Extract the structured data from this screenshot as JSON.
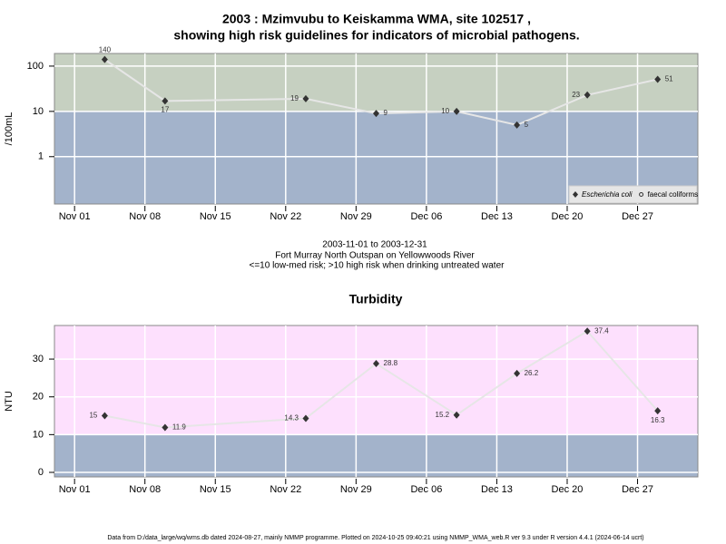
{
  "chart_data": [
    {
      "type": "line",
      "title": "2003 : Mzimvubu to Keiskamma WMA, site 102517 ,",
      "subtitle": "showing high risk guidelines for indicators of microbial pathogens.",
      "notes": [
        "2003-11-01 to 2003-12-31",
        "Fort Murray North Outspan on Yellowwoods River",
        "<=10 low-med risk; >10 high risk when drinking untreated water"
      ],
      "y_label": "/100mL",
      "log_y": true,
      "risk_threshold": 10,
      "band_colors": {
        "above": "#c6d0c1",
        "below": "#a3b3cb"
      },
      "x": [
        "2003-11-04",
        "2003-11-10",
        "2003-11-24",
        "2003-12-01",
        "2003-12-09",
        "2003-12-15",
        "2003-12-22",
        "2003-12-29"
      ],
      "series": [
        {
          "name": "Escherichia coli",
          "color": "#333333",
          "line_color": "#e6e6e6",
          "values": [
            140,
            17,
            19,
            9,
            10,
            5,
            23,
            51
          ]
        },
        {
          "name": "faecal coliforms",
          "color": "#333333",
          "line_color": "#e6e6e6",
          "values": [
            null,
            null,
            null,
            null,
            null,
            null,
            null,
            null
          ]
        }
      ],
      "xlim": [
        "2003-10-30",
        "2004-01-02"
      ],
      "xticks": [
        {
          "value": "2003-11-01",
          "label": "Nov 01"
        },
        {
          "value": "2003-11-08",
          "label": "Nov 08"
        },
        {
          "value": "2003-11-15",
          "label": "Nov 15"
        },
        {
          "value": "2003-11-22",
          "label": "Nov 22"
        },
        {
          "value": "2003-11-29",
          "label": "Nov 29"
        },
        {
          "value": "2003-12-06",
          "label": "Dec 06"
        },
        {
          "value": "2003-12-13",
          "label": "Dec 13"
        },
        {
          "value": "2003-12-20",
          "label": "Dec 20"
        },
        {
          "value": "2003-12-27",
          "label": "Dec 27"
        }
      ],
      "ylim": [
        0.09,
        190
      ],
      "yticks": [
        1,
        10,
        100
      ],
      "grid": true,
      "legend": "bottom-right"
    },
    {
      "type": "line",
      "title": "Turbidity",
      "y_label": "NTU",
      "log_y": false,
      "risk_threshold": 10,
      "band_colors": {
        "above": "#fde0fd",
        "below": "#a3b3cb"
      },
      "x": [
        "2003-11-04",
        "2003-11-10",
        "2003-11-24",
        "2003-12-01",
        "2003-12-09",
        "2003-12-15",
        "2003-12-22",
        "2003-12-29"
      ],
      "series": [
        {
          "name": "Turbidity",
          "color": "#333333",
          "line_color": "#e6e6e6",
          "values": [
            15,
            11.9,
            14.3,
            28.8,
            15.2,
            26.2,
            37.4,
            16.3
          ]
        }
      ],
      "xlim": [
        "2003-10-30",
        "2004-01-02"
      ],
      "xticks": [
        {
          "value": "2003-11-01",
          "label": "Nov 01"
        },
        {
          "value": "2003-11-08",
          "label": "Nov 08"
        },
        {
          "value": "2003-11-15",
          "label": "Nov 15"
        },
        {
          "value": "2003-11-22",
          "label": "Nov 22"
        },
        {
          "value": "2003-11-29",
          "label": "Nov 29"
        },
        {
          "value": "2003-12-06",
          "label": "Dec 06"
        },
        {
          "value": "2003-12-13",
          "label": "Dec 13"
        },
        {
          "value": "2003-12-20",
          "label": "Dec 20"
        },
        {
          "value": "2003-12-27",
          "label": "Dec 27"
        }
      ],
      "ylim": [
        -1.2,
        38.9
      ],
      "yticks": [
        0,
        10,
        20,
        30
      ],
      "grid": true
    }
  ],
  "footer": "Data from D:/data_large/wq/wms.db dated 2024-08-27, mainly NMMP programme. Plotted on 2024-10-25 09:40:21 using NMMP_WMA_web.R ver 9.3 under R version 4.4.1 (2024-06-14 ucrt)"
}
